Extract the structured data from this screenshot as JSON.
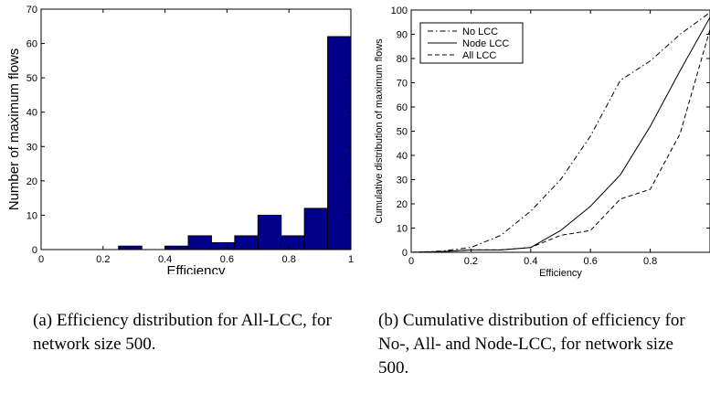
{
  "chart_data": [
    {
      "type": "bar",
      "title": "",
      "xlabel": "Efficiency",
      "ylabel": "Number of maximum flows",
      "xlim": [
        0,
        1
      ],
      "ylim": [
        0,
        70
      ],
      "xticks": [
        "0",
        "0.2",
        "0.4",
        "0.6",
        "0.8",
        "1"
      ],
      "yticks": [
        "0",
        "10",
        "20",
        "30",
        "40",
        "50",
        "60",
        "70"
      ],
      "bar_color": "#00008b",
      "bin_width": 0.075,
      "bins": [
        {
          "x_start": 0.25,
          "value": 1
        },
        {
          "x_start": 0.325,
          "value": 0
        },
        {
          "x_start": 0.4,
          "value": 1
        },
        {
          "x_start": 0.475,
          "value": 4
        },
        {
          "x_start": 0.55,
          "value": 2
        },
        {
          "x_start": 0.625,
          "value": 4
        },
        {
          "x_start": 0.7,
          "value": 10
        },
        {
          "x_start": 0.775,
          "value": 4
        },
        {
          "x_start": 0.85,
          "value": 12
        },
        {
          "x_start": 0.925,
          "value": 62
        }
      ]
    },
    {
      "type": "line",
      "title": "",
      "xlabel": "Efficiency",
      "ylabel": "Cumulative distribution of maximum flows",
      "xlim": [
        0,
        1
      ],
      "ylim": [
        0,
        100
      ],
      "xticks": [
        "0",
        "0.2",
        "0.4",
        "0.6",
        "0.8"
      ],
      "yticks": [
        "0",
        "10",
        "20",
        "30",
        "40",
        "50",
        "60",
        "70",
        "80",
        "90",
        "100"
      ],
      "legend_position": "top-left",
      "series": [
        {
          "name": "No LCC",
          "style": "dash-dot",
          "x": [
            0,
            0.1,
            0.2,
            0.3,
            0.4,
            0.5,
            0.6,
            0.7,
            0.8,
            0.9,
            1.0
          ],
          "y": [
            0,
            0.5,
            2,
            7,
            17,
            30,
            48,
            71,
            79,
            90,
            99
          ]
        },
        {
          "name": "Node LCC",
          "style": "solid",
          "x": [
            0,
            0.1,
            0.2,
            0.3,
            0.4,
            0.5,
            0.6,
            0.7,
            0.8,
            0.9,
            1.0
          ],
          "y": [
            0,
            0.3,
            1,
            1,
            2,
            9,
            19,
            32,
            52,
            75,
            97
          ]
        },
        {
          "name": "All LCC",
          "style": "dashed",
          "x": [
            0,
            0.1,
            0.2,
            0.3,
            0.4,
            0.5,
            0.6,
            0.7,
            0.8,
            0.9,
            1.0
          ],
          "y": [
            0,
            0.3,
            1,
            1,
            2,
            7,
            9,
            22,
            26,
            49,
            92
          ]
        }
      ]
    }
  ],
  "captions": {
    "a": "(a) Efficiency distribution for All-LCC, for network size 500.",
    "b": "(b) Cumulative distribution of efficiency for No-, All- and Node-LCC, for network size 500."
  }
}
